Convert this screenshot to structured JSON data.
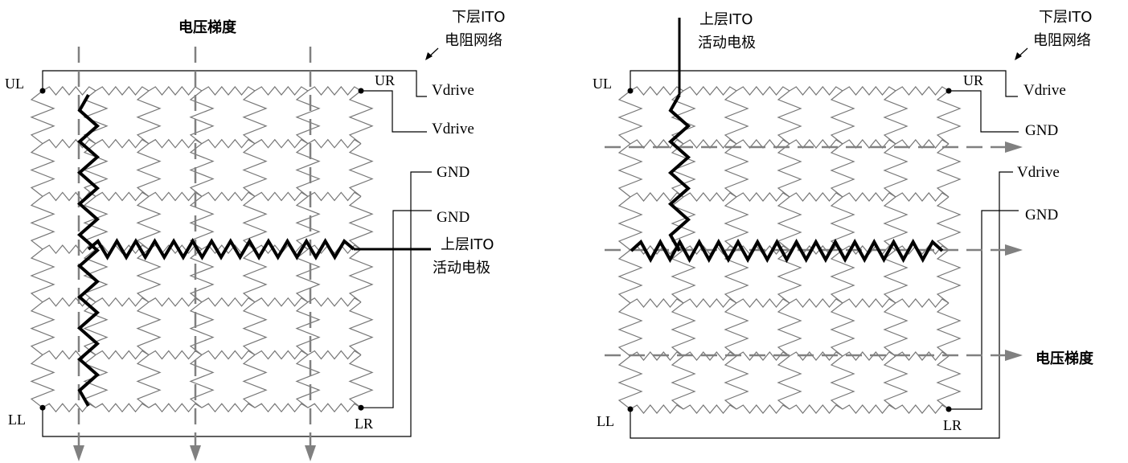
{
  "left": {
    "gradient_title": "电压梯度",
    "bottom_layer_line1": "下层ITO",
    "bottom_layer_line2": "电阻网络",
    "corner_ul": "UL",
    "corner_ur": "UR",
    "corner_ll": "LL",
    "corner_lr": "LR",
    "terminal_ul": "Vdrive",
    "terminal_ur": "Vdrive",
    "terminal_ll": "GND",
    "terminal_lr": "GND",
    "top_layer_line1": "上层ITO",
    "top_layer_line2": "活动电极"
  },
  "right": {
    "top_layer_line1": "上层ITO",
    "top_layer_line2": "活动电极",
    "bottom_layer_line1": "下层ITO",
    "bottom_layer_line2": "电阻网络",
    "corner_ul": "UL",
    "corner_ur": "UR",
    "corner_ll": "LL",
    "corner_lr": "LR",
    "terminal_ul": "Vdrive",
    "terminal_ur": "GND",
    "terminal_ll": "Vdrive",
    "terminal_lr": "GND",
    "gradient_title": "电压梯度"
  },
  "colors": {
    "grid": "#777777",
    "arrow": "#808080",
    "electrode": "#000000",
    "wire": "#000000"
  }
}
